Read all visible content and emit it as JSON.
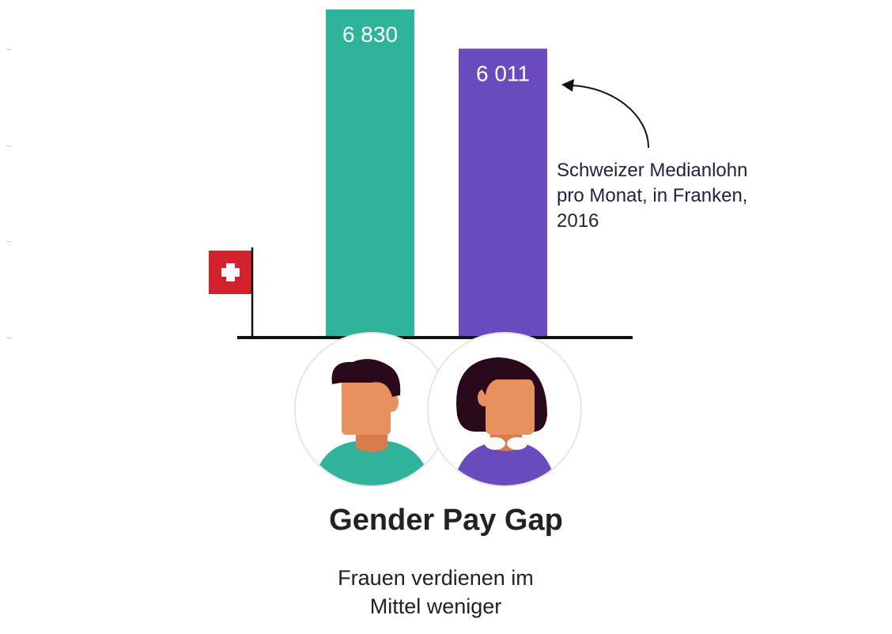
{
  "chart_data": {
    "type": "bar",
    "categories": [
      "Männer",
      "Frauen"
    ],
    "values": [
      6830,
      6011
    ],
    "value_labels": [
      "6 830",
      "6 011"
    ],
    "colors": [
      "#2fb39a",
      "#6a4bbd"
    ],
    "ylim": [
      0,
      6830
    ],
    "grid": false,
    "annotation": {
      "lines": [
        "Schweizer Medianlohn",
        "pro Monat, in Franken,",
        "2016"
      ]
    }
  },
  "flag_icon": "swiss-flag-icon",
  "avatars": {
    "man_icon": "man-avatar-icon",
    "woman_icon": "woman-avatar-icon",
    "skin": "#e8905e",
    "hair": "#2a0a1a",
    "man_shirt": "#2fb39a",
    "woman_shirt": "#6a4bbd"
  },
  "title": "Gender Pay Gap",
  "subtitle_lines": [
    "Frauen verdienen im",
    "Mittel weniger"
  ]
}
